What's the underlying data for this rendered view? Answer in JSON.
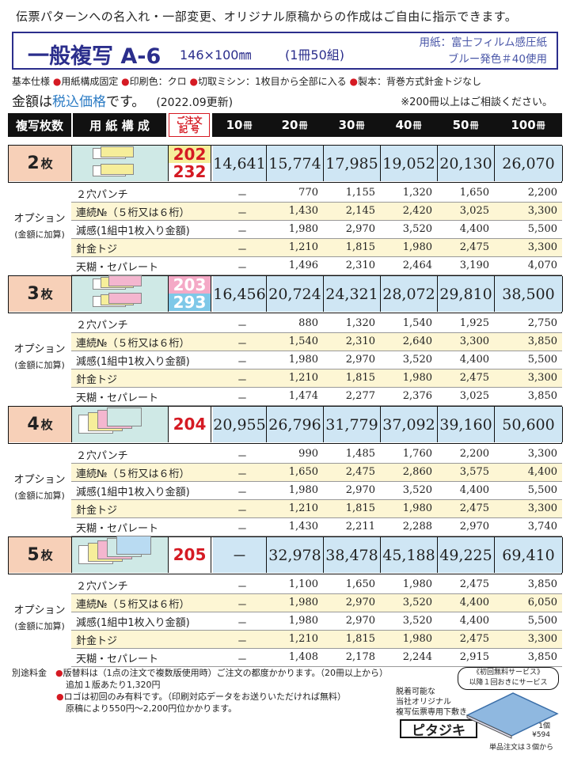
{
  "top_note": "伝票パターンへの名入れ・一部変更、オリジナル原稿からの作成はご自由に指示できます。",
  "title": {
    "name": "一般複写 A-6",
    "size": "146×100㎜",
    "volume": "(1冊50組)",
    "paper1": "用紙：富士フィルム感圧紙",
    "paper2": "ブルー発色＃40使用"
  },
  "specs": {
    "label": "基本仕様",
    "items": [
      "用紙構成固定",
      "印刷色：クロ",
      "切取ミシン：1枚目から全部に入る",
      "製本：背巻方式針金トジなし"
    ]
  },
  "price_note": {
    "a": "金額は",
    "b": "税込価格",
    "c": "です。",
    "update": "(2022.09更新)",
    "consult": "※200冊以上はご相談ください。"
  },
  "header": {
    "sheets": "複写枚数",
    "paper": "用 紙 構 成",
    "code_a": "ご注文",
    "code_b": "記 号",
    "unit": "冊",
    "qty": [
      "10",
      "20",
      "30",
      "40",
      "50",
      "100"
    ]
  },
  "option_label": "オプション",
  "option_sub": "(金額に加算)",
  "blocks": [
    {
      "sheets": "2",
      "sheets_unit": "枚",
      "codes": [
        "202",
        "232"
      ],
      "prices": [
        "14,641",
        "15,774",
        "17,985",
        "19,052",
        "20,130",
        "26,070"
      ],
      "options": [
        {
          "name": "２穴パンチ",
          "vals": [
            "－",
            "770",
            "1,155",
            "1,320",
            "1,650",
            "2,200"
          ]
        },
        {
          "name": "連続№（５桁又は６桁）",
          "vals": [
            "－",
            "1,430",
            "2,145",
            "2,420",
            "3,025",
            "3,300"
          ]
        },
        {
          "name": "減感(1組中1枚入り金額)",
          "vals": [
            "－",
            "1,980",
            "2,970",
            "3,520",
            "4,400",
            "5,500"
          ]
        },
        {
          "name": "針金トジ",
          "vals": [
            "－",
            "1,210",
            "1,815",
            "1,980",
            "2,475",
            "3,300"
          ]
        },
        {
          "name": "天糊・セパレート",
          "vals": [
            "－",
            "1,496",
            "2,310",
            "2,464",
            "3,190",
            "4,070"
          ]
        }
      ]
    },
    {
      "sheets": "3",
      "sheets_unit": "枚",
      "codes": [
        "203",
        "293"
      ],
      "prices": [
        "16,456",
        "20,724",
        "24,321",
        "28,072",
        "29,810",
        "38,500"
      ],
      "options": [
        {
          "name": "２穴パンチ",
          "vals": [
            "－",
            "880",
            "1,320",
            "1,540",
            "1,925",
            "2,750"
          ]
        },
        {
          "name": "連続№（５桁又は６桁）",
          "vals": [
            "－",
            "1,540",
            "2,310",
            "2,640",
            "3,300",
            "3,850"
          ]
        },
        {
          "name": "減感(1組中1枚入り金額)",
          "vals": [
            "－",
            "1,980",
            "2,970",
            "3,520",
            "4,400",
            "5,500"
          ]
        },
        {
          "name": "針金トジ",
          "vals": [
            "－",
            "1,210",
            "1,815",
            "1,980",
            "2,475",
            "3,300"
          ]
        },
        {
          "name": "天糊・セパレート",
          "vals": [
            "－",
            "1,474",
            "2,277",
            "2,376",
            "3,025",
            "3,850"
          ]
        }
      ]
    },
    {
      "sheets": "4",
      "sheets_unit": "枚",
      "codes": [
        "204"
      ],
      "prices": [
        "20,955",
        "26,796",
        "31,779",
        "37,092",
        "39,160",
        "50,600"
      ],
      "options": [
        {
          "name": "２穴パンチ",
          "vals": [
            "－",
            "990",
            "1,485",
            "1,760",
            "2,200",
            "3,300"
          ]
        },
        {
          "name": "連続№（５桁又は６桁）",
          "vals": [
            "－",
            "1,650",
            "2,475",
            "2,860",
            "3,575",
            "4,400"
          ]
        },
        {
          "name": "減感(1組中1枚入り金額)",
          "vals": [
            "－",
            "1,980",
            "2,970",
            "3,520",
            "4,400",
            "5,500"
          ]
        },
        {
          "name": "針金トジ",
          "vals": [
            "－",
            "1,210",
            "1,815",
            "1,980",
            "2,475",
            "3,300"
          ]
        },
        {
          "name": "天糊・セパレート",
          "vals": [
            "－",
            "1,430",
            "2,211",
            "2,288",
            "2,970",
            "3,740"
          ]
        }
      ]
    },
    {
      "sheets": "5",
      "sheets_unit": "枚",
      "codes": [
        "205"
      ],
      "prices": [
        "－",
        "32,978",
        "38,478",
        "45,188",
        "49,225",
        "69,410"
      ],
      "options": [
        {
          "name": "２穴パンチ",
          "vals": [
            "－",
            "1,100",
            "1,650",
            "1,980",
            "2,475",
            "3,850"
          ]
        },
        {
          "name": "連続№（５桁又は６桁）",
          "vals": [
            "－",
            "1,980",
            "2,970",
            "3,520",
            "4,400",
            "6,050"
          ]
        },
        {
          "name": "減感(1組中1枚入り金額)",
          "vals": [
            "－",
            "1,980",
            "2,970",
            "3,520",
            "4,400",
            "5,500"
          ]
        },
        {
          "name": "針金トジ",
          "vals": [
            "－",
            "1,210",
            "1,815",
            "1,980",
            "2,475",
            "3,300"
          ]
        },
        {
          "name": "天糊・セパレート",
          "vals": [
            "－",
            "1,408",
            "2,178",
            "2,244",
            "2,915",
            "3,850"
          ]
        }
      ]
    }
  ],
  "footer": {
    "l1a": "別途料金",
    "l1b": "版替料は（1点の注文で複数版使用時）ご注文の都度かかります。（20冊以上から）",
    "l2": "追加１版あたり1,320円",
    "l3": "ロゴは初回のみ有料です。（印刷対応データをお送りいただければ無料）",
    "l4": "原稿により550円～2,200円位かかります。"
  },
  "pitajiki": {
    "t1": "脱着可能な",
    "t2": "当社オリジナル",
    "t3": "複写伝票専用下敷き",
    "logo": "ピタジキ",
    "svc1": "《初回無料サービス》",
    "svc2": "以降１回おきにサービス",
    "qty": "1個",
    "price": "¥594",
    "note": "単品注文は３個から"
  }
}
